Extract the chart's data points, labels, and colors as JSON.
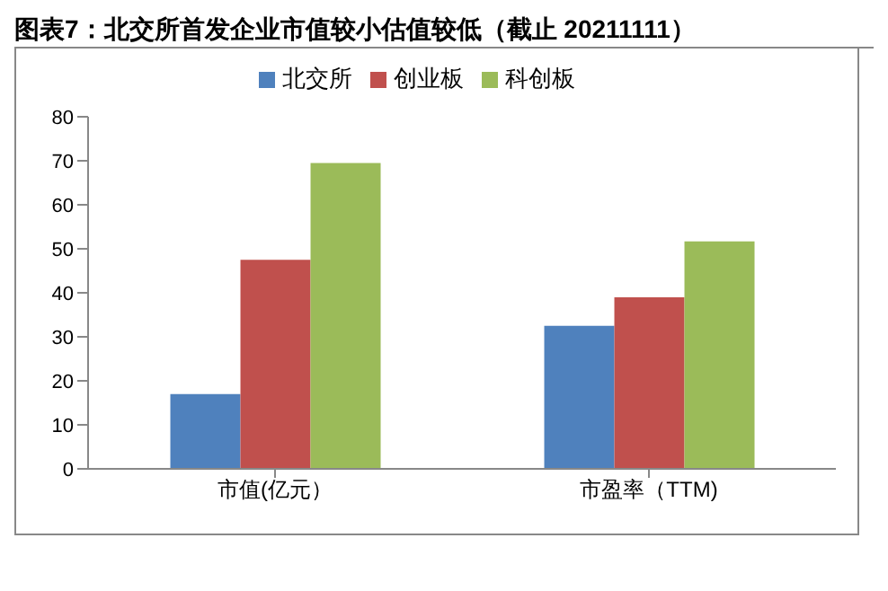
{
  "chart_data": {
    "type": "bar",
    "title": "图表7：北交所首发企业市值较小估值较低（截止 20211111）",
    "categories": [
      "市值(亿元）",
      "市盈率（TTM)"
    ],
    "series": [
      {
        "name": "北交所",
        "color": "#4f81bd",
        "values": [
          17,
          32.5
        ]
      },
      {
        "name": "创业板",
        "color": "#c0504d",
        "values": [
          47.5,
          39
        ]
      },
      {
        "name": "科创板",
        "color": "#9bbb59",
        "values": [
          69.5,
          51.7
        ]
      }
    ],
    "ylim": [
      0,
      80
    ],
    "yticks": [
      0,
      10,
      20,
      30,
      40,
      50,
      60,
      70,
      80
    ],
    "grid": false,
    "legend": "top"
  }
}
